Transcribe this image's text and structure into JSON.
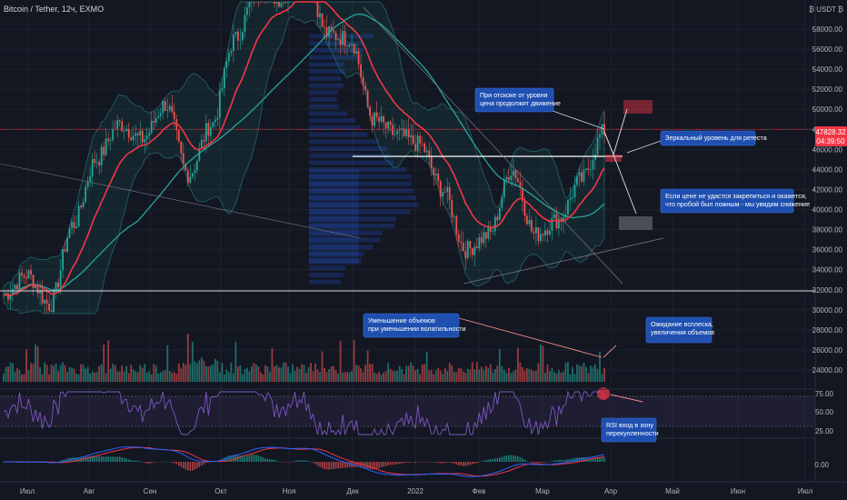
{
  "header": {
    "symbol": "Bitcoin / Tether, 12ч, EXMO",
    "currency_label": "₿ USDT ₿"
  },
  "price_axis": {
    "ticks": [
      "58000.00",
      "56000.00",
      "54000.00",
      "52000.00",
      "50000.00",
      "48000.00",
      "46000.00",
      "44000.00",
      "42000.00",
      "40000.00",
      "38000.00",
      "36000.00",
      "34000.00",
      "32000.00",
      "30000.00",
      "28000.00",
      "26000.00",
      "24000.00"
    ],
    "tick_values": [
      58000,
      56000,
      54000,
      52000,
      50000,
      48000,
      46000,
      44000,
      42000,
      40000,
      38000,
      36000,
      34000,
      32000,
      30000,
      28000,
      26000,
      24000
    ],
    "last_price": "47828.32",
    "countdown": "04:39:50"
  },
  "rsi_axis": {
    "ticks": [
      "75.00",
      "50.00",
      "25.00"
    ],
    "tick_values": [
      75,
      50,
      25
    ]
  },
  "macd_axis": {
    "ticks": [
      "0.00"
    ]
  },
  "time_axis": {
    "labels": [
      "Июл",
      "Авг",
      "Сен",
      "Окт",
      "Ноя",
      "Дек",
      "2022",
      "Фев",
      "Мар",
      "Апр",
      "Май",
      "Июн",
      "Июл"
    ]
  },
  "annotations": {
    "rebound": "При отскоке от уровня\nцена продолжит движение",
    "mirror": "Зеркальный уровень для ретеста",
    "false_breakout": "Если цене не удастся закрепиться и окажется,\nчто пробой был ложным - мы увидим снижение",
    "volume_decrease": "Уменьшение объемов\nпри уменьшении волатильности",
    "volume_spike": "Ожидание всплеска,\nувеличения объемов",
    "rsi_overbought": "RSI вход в зону\nперекупленности"
  },
  "colors": {
    "background": "#131722",
    "candle_up": "#26a69a",
    "candle_down": "#ef5350",
    "ema": "#f23645",
    "sma": "#26a69a",
    "bollinger": "#2ca29a",
    "rsi": "#7e57c2",
    "annotation_bg": "#1f4fb0"
  },
  "chart_data": {
    "type": "candlestick",
    "interval": "12h",
    "ylim": [
      23000,
      60000
    ],
    "price_path": [
      {
        "t": "Июл",
        "v": 31500
      },
      {
        "t": "Июл",
        "v": 33500
      },
      {
        "t": "Июл",
        "v": 30500
      },
      {
        "t": "Авг",
        "v": 38500
      },
      {
        "t": "Авг",
        "v": 45000
      },
      {
        "t": "Авг",
        "v": 48500
      },
      {
        "t": "Сен",
        "v": 47000
      },
      {
        "t": "Сен",
        "v": 50500
      },
      {
        "t": "Сен",
        "v": 43500
      },
      {
        "t": "Окт",
        "v": 48500
      },
      {
        "t": "Окт",
        "v": 57000
      },
      {
        "t": "Окт",
        "v": 62000
      },
      {
        "t": "Ноя",
        "v": 61000
      },
      {
        "t": "Ноя",
        "v": 64500
      },
      {
        "t": "Ноя",
        "v": 57500
      },
      {
        "t": "Дек",
        "v": 57000
      },
      {
        "t": "Дек",
        "v": 49000
      },
      {
        "t": "Дек",
        "v": 47500
      },
      {
        "t": "2022",
        "v": 46500
      },
      {
        "t": "2022",
        "v": 42000
      },
      {
        "t": "2022",
        "v": 36000
      },
      {
        "t": "Фев",
        "v": 37500
      },
      {
        "t": "Фев",
        "v": 44000
      },
      {
        "t": "Фев",
        "v": 37500
      },
      {
        "t": "Мар",
        "v": 39000
      },
      {
        "t": "Мар",
        "v": 43000
      },
      {
        "t": "Мар",
        "v": 47828
      }
    ],
    "levels": [
      46000,
      32000
    ],
    "rsi": {
      "last": 75
    }
  }
}
